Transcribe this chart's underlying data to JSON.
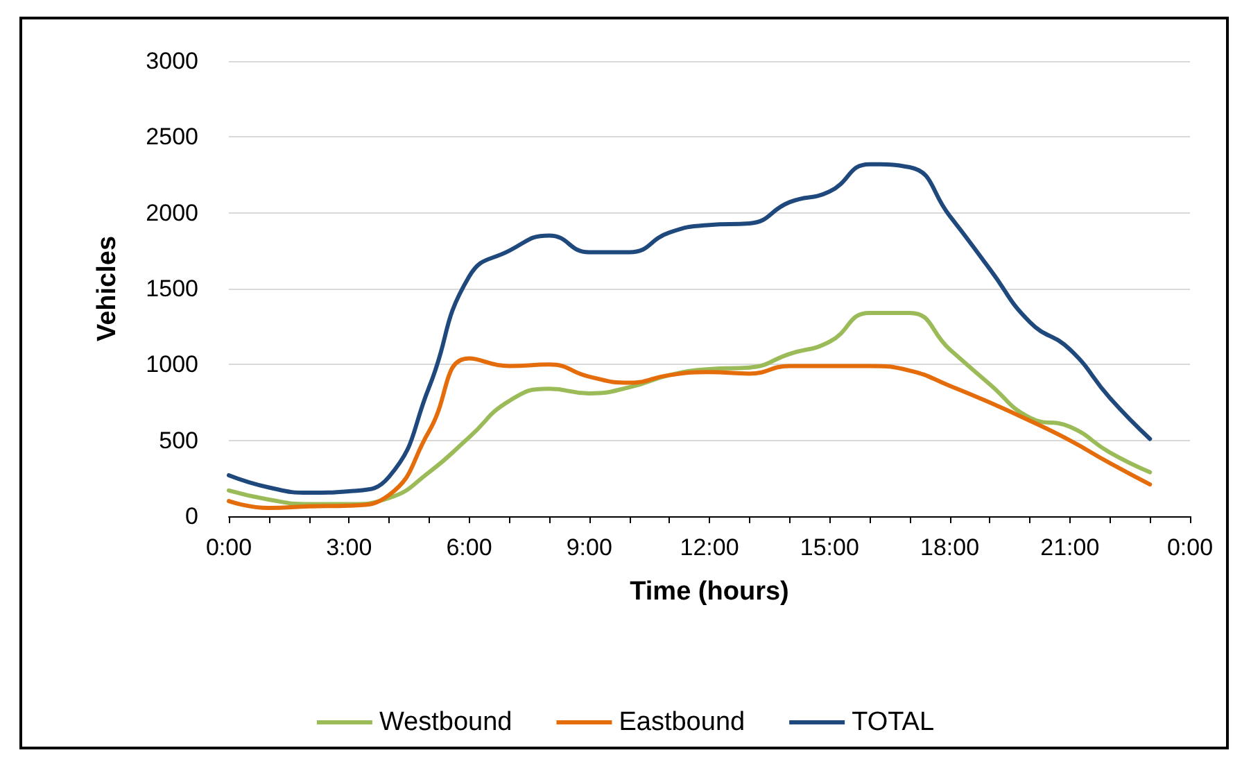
{
  "chart_data": {
    "type": "line",
    "xlabel": "Time (hours)",
    "ylabel": "Vehicles",
    "x": [
      0,
      1,
      2,
      3,
      4,
      5,
      6,
      7,
      8,
      9,
      10,
      11,
      12,
      13,
      14,
      15,
      16,
      17,
      18,
      19,
      20,
      21,
      22,
      23
    ],
    "series": [
      {
        "name": "Westbound",
        "color": "#9bbb59",
        "values": [
          170,
          110,
          80,
          80,
          120,
          290,
          520,
          760,
          840,
          810,
          850,
          930,
          970,
          980,
          1070,
          1150,
          1340,
          1340,
          1100,
          870,
          650,
          590,
          420,
          290
        ]
      },
      {
        "name": "Eastbound",
        "color": "#e46c0a",
        "values": [
          100,
          55,
          65,
          70,
          140,
          560,
          1040,
          990,
          1000,
          920,
          880,
          930,
          950,
          940,
          990,
          990,
          990,
          960,
          860,
          750,
          630,
          500,
          350,
          210
        ]
      },
      {
        "name": "TOTAL",
        "color": "#1f497d",
        "values": [
          270,
          190,
          155,
          165,
          260,
          850,
          1580,
          1750,
          1850,
          1740,
          1740,
          1870,
          1920,
          1930,
          2070,
          2140,
          2320,
          2300,
          1980,
          1630,
          1280,
          1100,
          780,
          510
        ]
      }
    ],
    "xlim": [
      0,
      24
    ],
    "xticks": [
      {
        "value": 0,
        "label": "0:00"
      },
      {
        "value": 3,
        "label": "3:00"
      },
      {
        "value": 6,
        "label": "6:00"
      },
      {
        "value": 9,
        "label": "9:00"
      },
      {
        "value": 12,
        "label": "12:00"
      },
      {
        "value": 15,
        "label": "15:00"
      },
      {
        "value": 18,
        "label": "18:00"
      },
      {
        "value": 21,
        "label": "21:00"
      },
      {
        "value": 24,
        "label": "0:00"
      }
    ],
    "ylim": [
      0,
      3000
    ],
    "yticks": [
      0,
      500,
      1000,
      1500,
      2000,
      2500,
      3000
    ],
    "grid": "y",
    "legend": "bottom",
    "marker": "none",
    "line_style": "solid"
  }
}
